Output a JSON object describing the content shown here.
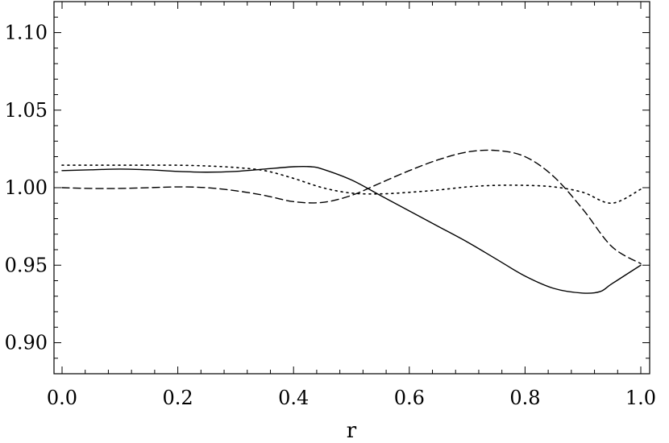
{
  "chart_data": {
    "type": "line",
    "title": "",
    "xlabel": "r",
    "ylabel": "",
    "xlim": [
      0.0,
      1.0
    ],
    "ylim": [
      0.88,
      1.12
    ],
    "x_ticks": [
      0.0,
      0.2,
      0.4,
      0.6,
      0.8,
      1.0
    ],
    "x_tick_labels": [
      "0.0",
      "0.2",
      "0.4",
      "0.6",
      "0.8",
      "1.0"
    ],
    "y_ticks": [
      0.9,
      0.95,
      1.0,
      1.05,
      1.1
    ],
    "y_tick_labels": [
      "0.90",
      "0.95",
      "1.00",
      "1.05",
      "1.10"
    ],
    "grid": false,
    "legend": "none",
    "series": [
      {
        "style": "solid",
        "x": [
          0.0,
          0.05,
          0.1,
          0.15,
          0.2,
          0.25,
          0.3,
          0.35,
          0.4,
          0.43,
          0.45,
          0.5,
          0.55,
          0.6,
          0.65,
          0.7,
          0.75,
          0.8,
          0.85,
          0.9,
          0.93,
          0.95,
          1.0
        ],
        "y": [
          1.011,
          1.0115,
          1.012,
          1.0115,
          1.0105,
          1.01,
          1.0105,
          1.012,
          1.0135,
          1.0135,
          1.012,
          1.005,
          0.995,
          0.985,
          0.975,
          0.965,
          0.954,
          0.943,
          0.935,
          0.932,
          0.933,
          0.938,
          0.95
        ]
      },
      {
        "style": "dashed",
        "x": [
          0.0,
          0.05,
          0.1,
          0.15,
          0.2,
          0.25,
          0.3,
          0.35,
          0.4,
          0.45,
          0.5,
          0.55,
          0.6,
          0.65,
          0.7,
          0.75,
          0.8,
          0.85,
          0.9,
          0.95,
          1.0
        ],
        "y": [
          1.0,
          0.9995,
          0.9995,
          1.0,
          1.0005,
          1.0,
          0.998,
          0.995,
          0.991,
          0.9905,
          0.995,
          1.003,
          1.011,
          1.018,
          1.023,
          1.024,
          1.02,
          1.007,
          0.986,
          0.962,
          0.951
        ]
      },
      {
        "style": "dotted",
        "x": [
          0.0,
          0.05,
          0.1,
          0.15,
          0.2,
          0.25,
          0.3,
          0.35,
          0.4,
          0.45,
          0.5,
          0.55,
          0.6,
          0.65,
          0.7,
          0.75,
          0.8,
          0.85,
          0.9,
          0.95,
          1.0
        ],
        "y": [
          1.0145,
          1.0145,
          1.0145,
          1.0145,
          1.0145,
          1.014,
          1.013,
          1.011,
          1.006,
          1.0,
          0.9965,
          0.996,
          0.997,
          0.9985,
          1.0005,
          1.0015,
          1.0015,
          1.0005,
          0.997,
          0.99,
          0.999
        ]
      }
    ]
  }
}
